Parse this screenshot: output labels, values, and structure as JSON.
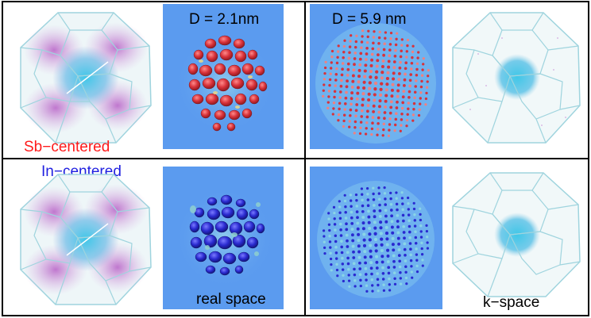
{
  "labels": {
    "d_small": "D = 2.1nm",
    "d_large": "D = 5.9 nm",
    "sb_centered": "Sb−centered",
    "in_centered": "In−centered",
    "real_space": "real space",
    "k_space": "k−space"
  },
  "colors": {
    "panel_background": "#5b9bef",
    "sb_isosurface": "#d8323a",
    "in_isosurface": "#2a2ad0",
    "sb_label": "#ff1a1a",
    "in_label": "#1f1fe0",
    "bz_edges": "#9fd4de",
    "k_points": "#b04cc0",
    "k_center": "#3fc7e8"
  },
  "icons": {
    "brillouin_zone": "truncated-octahedron-icon"
  }
}
